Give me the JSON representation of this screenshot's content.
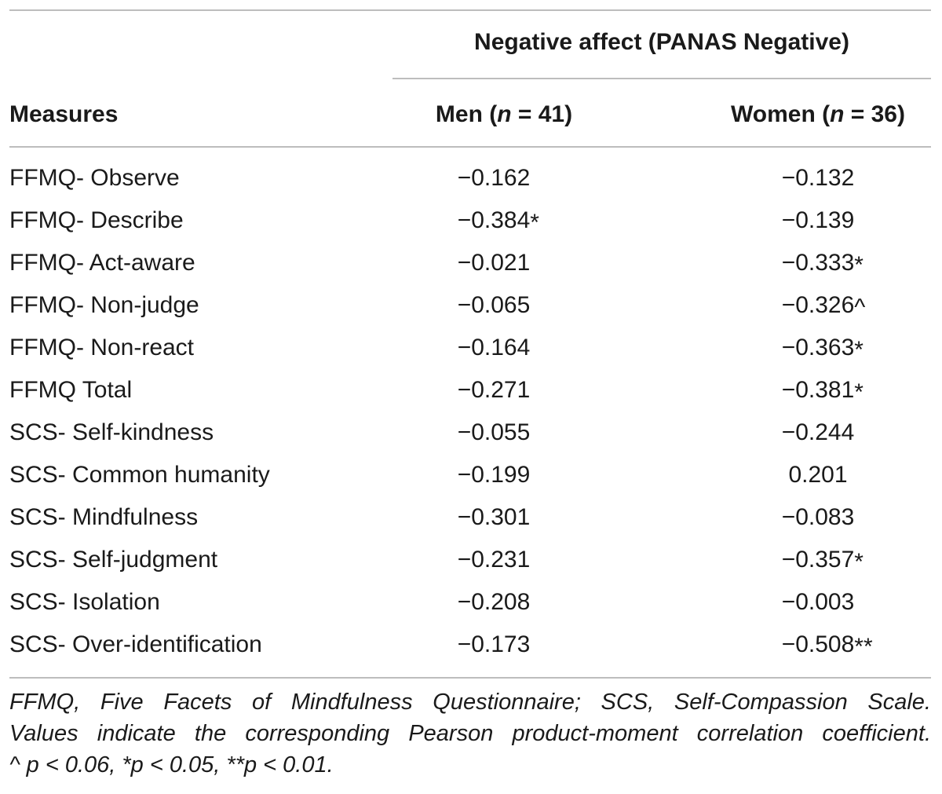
{
  "table": {
    "group_header": "Negative affect (PANAS Negative)",
    "columns": {
      "measures": "Measures",
      "men_label": "Men (",
      "men_n": "n",
      "men_count": " = 41)",
      "women_label": "Women (",
      "women_n": "n",
      "women_count": " = 36)"
    },
    "rows": [
      {
        "measure": "FFMQ- Observe",
        "men": "−0.162",
        "men_mark": "",
        "women": "−0.132",
        "women_mark": ""
      },
      {
        "measure": "FFMQ- Describe",
        "men": "−0.384",
        "men_mark": "*",
        "women": "−0.139",
        "women_mark": ""
      },
      {
        "measure": "FFMQ- Act-aware",
        "men": "−0.021",
        "men_mark": "",
        "women": "−0.333",
        "women_mark": "*"
      },
      {
        "measure": "FFMQ- Non-judge",
        "men": "−0.065",
        "men_mark": "",
        "women": "−0.326",
        "women_mark": "^"
      },
      {
        "measure": "FFMQ- Non-react",
        "men": "−0.164",
        "men_mark": "",
        "women": "−0.363",
        "women_mark": "*"
      },
      {
        "measure": "FFMQ Total",
        "men": "−0.271",
        "men_mark": "",
        "women": "−0.381",
        "women_mark": "*"
      },
      {
        "measure": "SCS- Self-kindness",
        "men": "−0.055",
        "men_mark": "",
        "women": "−0.244",
        "women_mark": ""
      },
      {
        "measure": "SCS- Common humanity",
        "men": "−0.199",
        "men_mark": "",
        "women": "0.201",
        "women_mark": ""
      },
      {
        "measure": "SCS- Mindfulness",
        "men": "−0.301",
        "men_mark": "",
        "women": "−0.083",
        "women_mark": ""
      },
      {
        "measure": "SCS- Self-judgment",
        "men": "−0.231",
        "men_mark": "",
        "women": "−0.357",
        "women_mark": "*"
      },
      {
        "measure": "SCS- Isolation",
        "men": "−0.208",
        "men_mark": "",
        "women": "−0.003",
        "women_mark": ""
      },
      {
        "measure": "SCS- Over-identification",
        "men": "−0.173",
        "men_mark": "",
        "women": "−0.508",
        "women_mark": "**"
      }
    ]
  },
  "footnote": {
    "line1": "FFMQ, Five Facets of Mindfulness Questionnaire; SCS, Self-Compassion Scale.",
    "line2": "Values indicate the corresponding Pearson product-moment correlation coefficient.",
    "line3": "^ p < 0.06, *p < 0.05, **p < 0.01."
  }
}
